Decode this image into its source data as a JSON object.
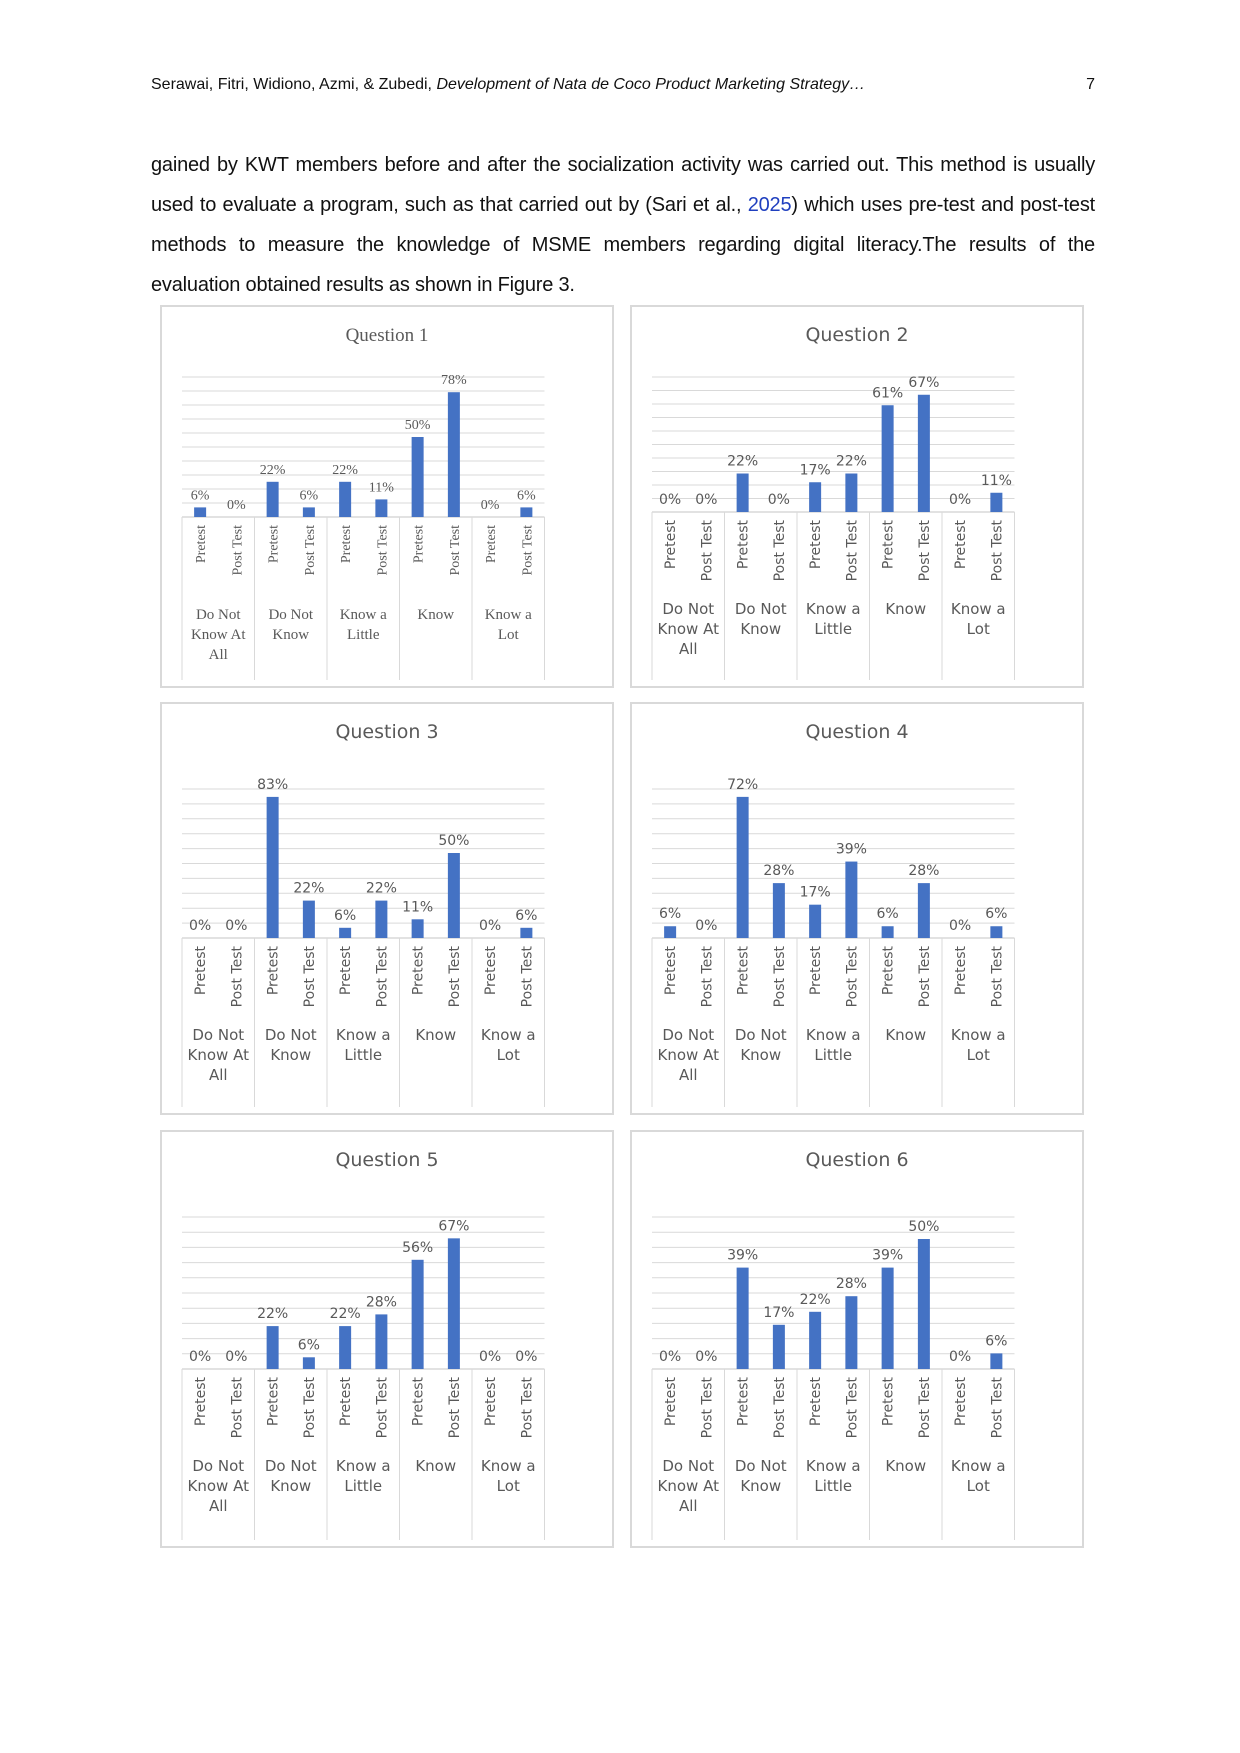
{
  "header": {
    "authors": "Serawai, Fitri, Widiono, Azmi, & Zubedi, ",
    "title_italic": "Development of Nata de Coco Product Marketing Strategy…",
    "page_number": "7"
  },
  "paragraph": {
    "before_cite": "gained by KWT members before and after the socialization activity was carried out. This method is usually used to evaluate a program, such as that carried out by (Sari et al., ",
    "cite_year": "2025",
    "after_cite": ") which uses pre-test and post-test methods to measure the knowledge of MSME members regarding digital literacy.The results of the evaluation obtained results as shown in Figure 3."
  },
  "colors": {
    "bar": "#4472c4",
    "grid": "#d9d9d9",
    "text": "#595959",
    "border": "#d9d9d9"
  },
  "chart_data": [
    {
      "type": "bar",
      "title": "Question 1",
      "ylim": [
        0,
        100
      ],
      "groups": [
        "Do Not Know At All",
        "Do Not Know",
        "Know a Little",
        "Know",
        "Know a Lot"
      ],
      "group_labels": [
        [
          "Do Not",
          "Know At",
          "All"
        ],
        [
          "Do Not",
          "Know"
        ],
        [
          "Know a",
          "Little"
        ],
        [
          "Know"
        ],
        [
          "Know a",
          "Lot"
        ]
      ],
      "bar_labels": [
        "Pretest",
        "Post Test"
      ],
      "values": [
        [
          6,
          0
        ],
        [
          22,
          6
        ],
        [
          22,
          11
        ],
        [
          50,
          78
        ],
        [
          0,
          6
        ]
      ]
    },
    {
      "type": "bar",
      "title": "Question 2",
      "ylim": [
        0,
        100
      ],
      "groups": [
        "Do Not Know At All",
        "Do Not Know",
        "Know a Little",
        "Know",
        "Know a Lot"
      ],
      "group_labels": [
        [
          "Do Not",
          "Know At",
          "All"
        ],
        [
          "Do Not",
          "Know"
        ],
        [
          "Know a",
          "Little"
        ],
        [
          "Know"
        ],
        [
          "Know a",
          "Lot"
        ]
      ],
      "bar_labels": [
        "Pretest",
        "Post Test"
      ],
      "values": [
        [
          0,
          0
        ],
        [
          22,
          0
        ],
        [
          17,
          22
        ],
        [
          61,
          67
        ],
        [
          0,
          11
        ]
      ]
    },
    {
      "type": "bar",
      "title": "Question 3",
      "ylim": [
        0,
        100
      ],
      "groups": [
        "Do Not Know At All",
        "Do Not Know",
        "Know a Little",
        "Know",
        "Know a Lot"
      ],
      "group_labels": [
        [
          "Do Not",
          "Know At",
          "All"
        ],
        [
          "Do Not",
          "Know"
        ],
        [
          "Know a",
          "Little"
        ],
        [
          "Know"
        ],
        [
          "Know a",
          "Lot"
        ]
      ],
      "bar_labels": [
        "Pretest",
        "Post Test"
      ],
      "values": [
        [
          0,
          0
        ],
        [
          83,
          22
        ],
        [
          6,
          22
        ],
        [
          11,
          50
        ],
        [
          0,
          6
        ]
      ]
    },
    {
      "type": "bar",
      "title": "Question 4",
      "ylim": [
        0,
        100
      ],
      "groups": [
        "Do Not Know At All",
        "Do Not Know",
        "Know a Little",
        "Know",
        "Know a Lot"
      ],
      "group_labels": [
        [
          "Do Not",
          "Know At",
          "All"
        ],
        [
          "Do Not",
          "Know"
        ],
        [
          "Know a",
          "Little"
        ],
        [
          "Know"
        ],
        [
          "Know a",
          "Lot"
        ]
      ],
      "bar_labels": [
        "Pretest",
        "Post Test"
      ],
      "values": [
        [
          6,
          0
        ],
        [
          72,
          28
        ],
        [
          17,
          39
        ],
        [
          6,
          28
        ],
        [
          0,
          6
        ]
      ]
    },
    {
      "type": "bar",
      "title": "Question 5",
      "ylim": [
        0,
        100
      ],
      "groups": [
        "Do Not Know At All",
        "Do Not Know",
        "Know a Little",
        "Know",
        "Know a Lot"
      ],
      "group_labels": [
        [
          "Do Not",
          "Know At",
          "All"
        ],
        [
          "Do Not",
          "Know"
        ],
        [
          "Know a",
          "Little"
        ],
        [
          "Know"
        ],
        [
          "Know a",
          "Lot"
        ]
      ],
      "bar_labels": [
        "Pretest",
        "Post Test"
      ],
      "values": [
        [
          0,
          0
        ],
        [
          22,
          6
        ],
        [
          22,
          28
        ],
        [
          56,
          67
        ],
        [
          0,
          0
        ]
      ]
    },
    {
      "type": "bar",
      "title": "Question 6",
      "ylim": [
        0,
        100
      ],
      "groups": [
        "Do Not Know At All",
        "Do Not Know",
        "Know a Little",
        "Know",
        "Know a Lot"
      ],
      "group_labels": [
        [
          "Do Not",
          "Know At",
          "All"
        ],
        [
          "Do Not",
          "Know"
        ],
        [
          "Know a",
          "Little"
        ],
        [
          "Know"
        ],
        [
          "Know a",
          "Lot"
        ]
      ],
      "bar_labels": [
        "Pretest",
        "Post Test"
      ],
      "values": [
        [
          0,
          0
        ],
        [
          39,
          17
        ],
        [
          22,
          28
        ],
        [
          39,
          50
        ],
        [
          0,
          6
        ]
      ]
    }
  ]
}
